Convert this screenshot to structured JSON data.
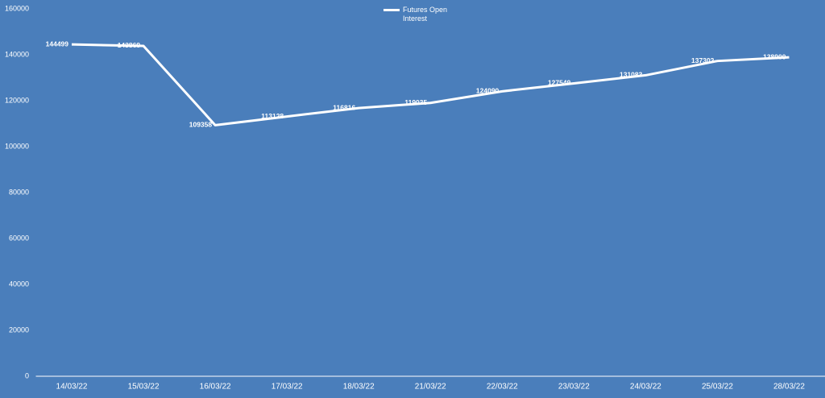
{
  "chart_data": {
    "type": "line",
    "categories": [
      "14/03/22",
      "15/03/22",
      "16/03/22",
      "17/03/22",
      "18/03/22",
      "21/03/22",
      "22/03/22",
      "23/03/22",
      "24/03/22",
      "25/03/22",
      "28/03/22"
    ],
    "series": [
      {
        "name": "Futures Open Interest",
        "color": "#ffffff",
        "values": [
          144499,
          143869,
          109358,
          113128,
          116816,
          119035,
          124090,
          127549,
          131083,
          137302,
          138900
        ]
      }
    ],
    "ylim": [
      0,
      160000
    ],
    "yticks": [
      0,
      20000,
      40000,
      60000,
      80000,
      100000,
      120000,
      140000,
      160000
    ],
    "drop_lines": true,
    "data_labels": true,
    "legend": "top"
  }
}
